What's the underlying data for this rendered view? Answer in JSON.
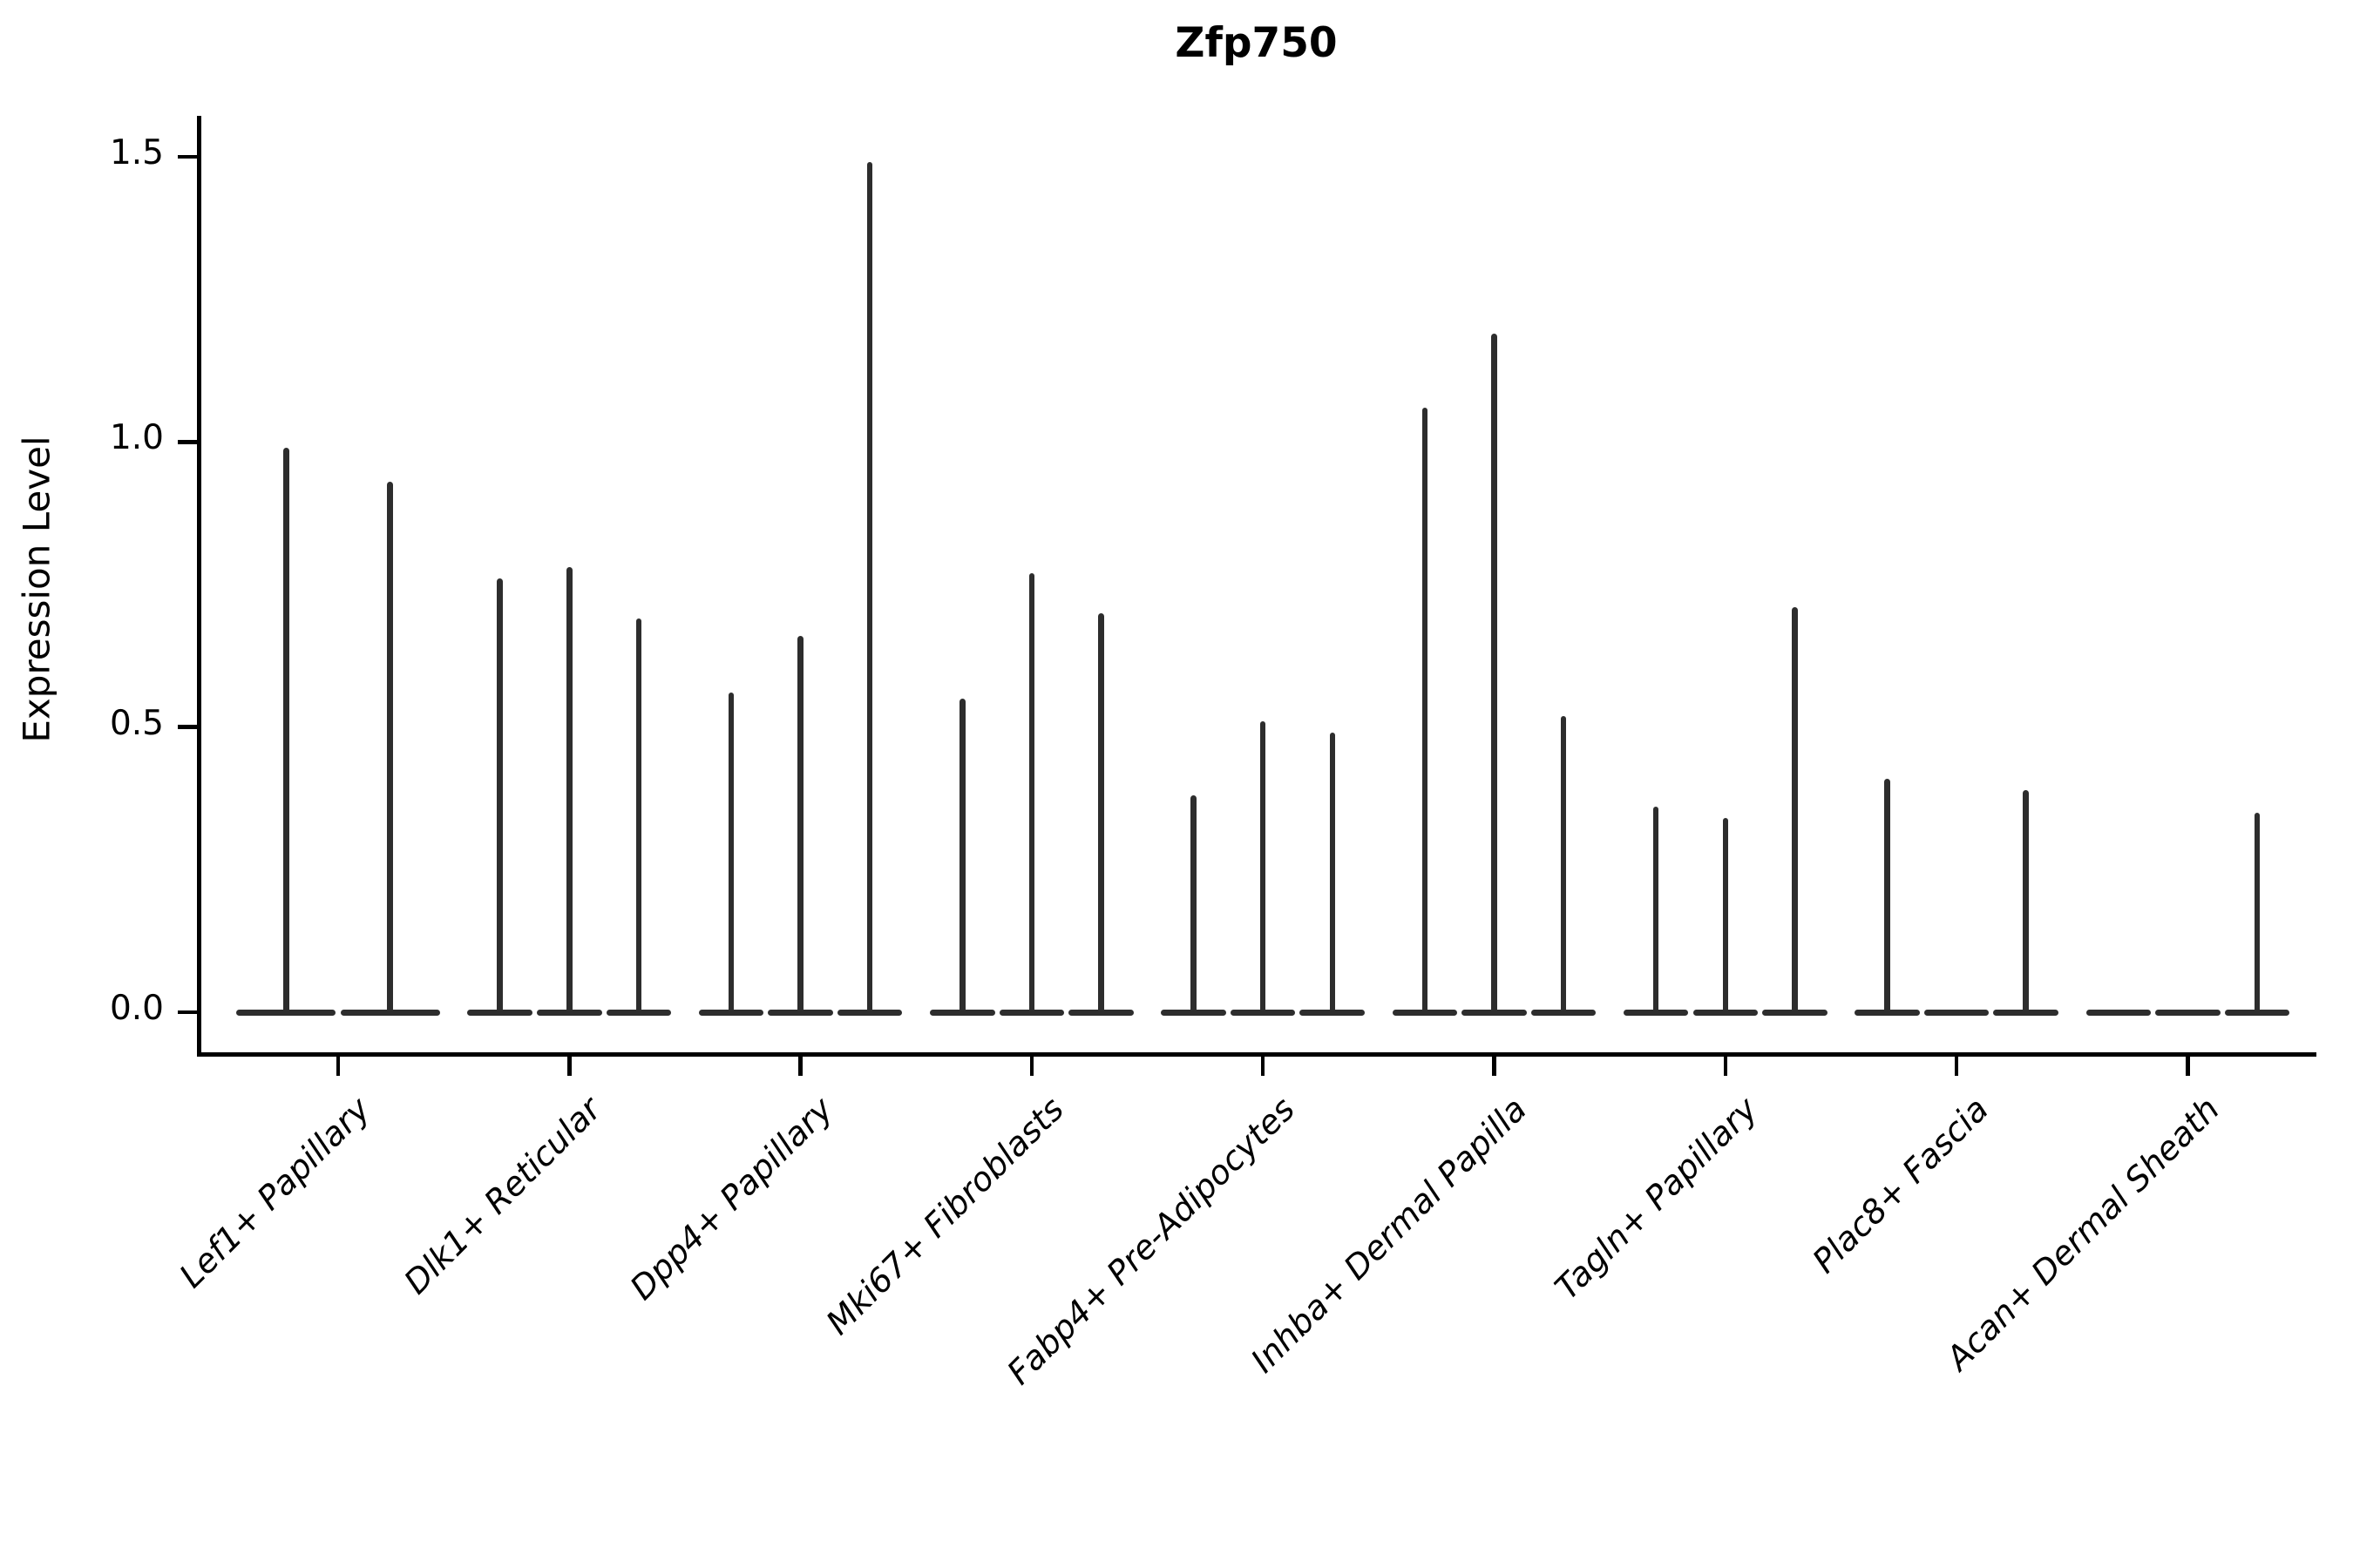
{
  "title": "Zfp750",
  "chart_data": {
    "type": "violin",
    "title": "Zfp750",
    "xlabel": "",
    "ylabel": "Expression Level",
    "ylim": [
      -0.07,
      1.57
    ],
    "grid": false,
    "legend": "none",
    "ytick_values": [
      0.0,
      0.5,
      1.0,
      1.5
    ],
    "ytick_labels": [
      "0.0",
      "0.5",
      "1.0",
      "1.5"
    ],
    "categories": [
      "Lef1+ Papillary",
      "Dlk1+ Reticular",
      "Dpp4+ Papillary",
      "Mki67+ Fibroblasts",
      "Fabp4+ Pre-Adipocytes",
      "Inhba+ Dermal Papilla",
      "Tagln+ Papillary",
      "Plac8+ Fascia",
      "Acan+ Dermal Sheath"
    ],
    "violin_max_expression_per_category": [
      [
        0.99,
        0.93
      ],
      [
        0.76,
        0.78,
        0.69
      ],
      [
        0.56,
        0.66,
        1.49
      ],
      [
        0.55,
        0.77,
        0.7
      ],
      [
        0.38,
        0.51,
        0.49
      ],
      [
        1.06,
        1.19,
        0.52
      ],
      [
        0.36,
        0.34,
        0.71
      ],
      [
        0.41,
        0.0,
        0.39
      ],
      [
        0.0,
        0.0,
        0.35
      ]
    ],
    "note": "Each category shows thin violins (mostly-zero expression); value 0 means a flat violin lying on the baseline with no spike"
  }
}
